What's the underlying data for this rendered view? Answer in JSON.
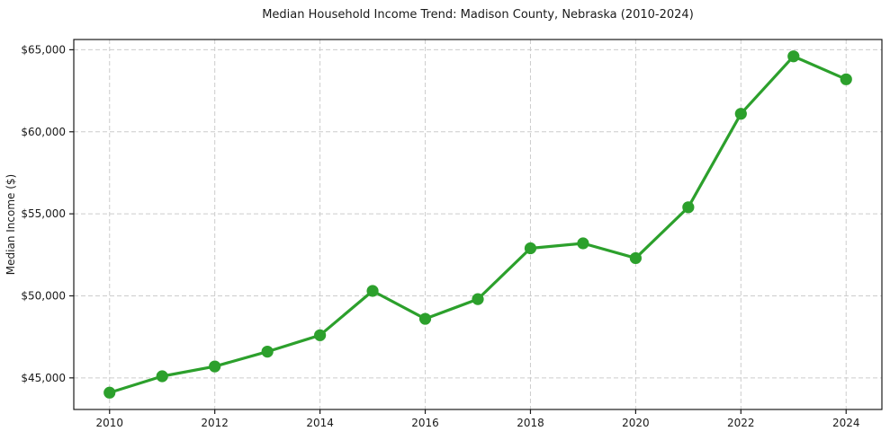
{
  "figure": {
    "background_color": "#ffffff",
    "text_color": "#1a1a1a",
    "spine_color": "#1a1a1a",
    "grid_color": "#cccccc"
  },
  "chart_data": {
    "type": "line",
    "title": "Median Household Income Trend: Madison County, Nebraska (2010-2024)",
    "xlabel": "",
    "ylabel": "Median Income ($)",
    "x": [
      2010,
      2011,
      2012,
      2013,
      2014,
      2015,
      2016,
      2017,
      2018,
      2019,
      2020,
      2021,
      2022,
      2023,
      2024
    ],
    "values": [
      44100,
      45100,
      45700,
      46600,
      47600,
      50300,
      48600,
      49800,
      52900,
      53200,
      52300,
      55400,
      61100,
      64600,
      63200
    ],
    "series_color": "#2ca02c",
    "marker": "circle",
    "xlim": [
      2009.32,
      2024.68
    ],
    "ylim": [
      43075,
      65625
    ],
    "xticks": [
      2010,
      2012,
      2014,
      2016,
      2018,
      2020,
      2022,
      2024
    ],
    "xtick_labels": [
      "2010",
      "2012",
      "2014",
      "2016",
      "2018",
      "2020",
      "2022",
      "2024"
    ],
    "yticks": [
      45000,
      50000,
      55000,
      60000,
      65000
    ],
    "ytick_labels": [
      "$45,000",
      "$50,000",
      "$55,000",
      "$60,000",
      "$65,000"
    ],
    "grid": {
      "visible": true,
      "style": "dashed"
    },
    "legend_position": "none"
  }
}
